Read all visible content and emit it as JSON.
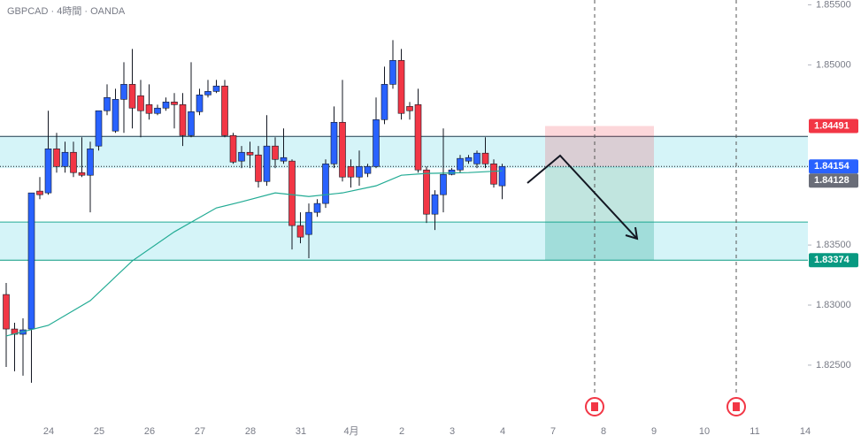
{
  "chart_data": {
    "type": "candlestick",
    "title": "GBPCAD · 4時間 · OANDA",
    "categories": [
      "24",
      "25",
      "26",
      "27",
      "28",
      "31",
      "4月",
      "2",
      "3",
      "4",
      "7",
      "8",
      "9",
      "10",
      "11",
      "14"
    ],
    "up_color": "#2962ff",
    "down_color": "#f23645",
    "open": [
      1.83088,
      1.82801,
      1.82757,
      1.82801,
      1.83949,
      1.83934,
      1.84301,
      1.84154,
      1.84272,
      1.84103,
      1.84081,
      1.84324,
      1.84618,
      1.84449,
      1.84713,
      1.84838,
      1.84743,
      1.84669,
      1.84596,
      1.8464,
      1.84691,
      1.84669,
      1.84412,
      1.8461,
      1.8475,
      1.84779,
      1.84824,
      1.84412,
      1.84199,
      1.84272,
      1.8425,
      1.84029,
      1.84324,
      1.84199,
      1.84199,
      1.83662,
      1.83588,
      1.83772,
      1.83846,
      1.84176,
      1.84522,
      1.84154,
      1.84066,
      1.84096,
      1.84154,
      1.84544,
      1.84838,
      1.85037,
      1.84654,
      1.84669,
      1.84125,
      1.83757,
      1.83919,
      1.84088,
      1.84125,
      1.84199,
      1.84176,
      1.84265,
      1.84176,
      1.83993
    ],
    "high": [
      1.83184,
      1.82853,
      1.8289,
      1.83934,
      1.84066,
      1.84618,
      1.84434,
      1.8436,
      1.8436,
      1.84397,
      1.8436,
      1.84618,
      1.84838,
      1.84801,
      1.85022,
      1.85132,
      1.84875,
      1.84838,
      1.84669,
      1.84728,
      1.84765,
      1.84765,
      1.85022,
      1.84801,
      1.84875,
      1.84875,
      1.84875,
      1.84434,
      1.84324,
      1.8436,
      1.84324,
      1.84581,
      1.84397,
      1.84471,
      1.84213,
      1.83772,
      1.83846,
      1.83882,
      1.84213,
      1.84654,
      1.84875,
      1.84213,
      1.84287,
      1.84176,
      1.84728,
      1.84985,
      1.85206,
      1.85132,
      1.84691,
      1.84801,
      1.84154,
      1.83956,
      1.84471,
      1.8414,
      1.8425,
      1.8425,
      1.84287,
      1.84397,
      1.84213,
      1.84176
    ],
    "low": [
      1.82485,
      1.82449,
      1.82412,
      1.82353,
      1.83882,
      1.83919,
      1.84103,
      1.84103,
      1.84066,
      1.84066,
      1.83772,
      1.84287,
      1.84581,
      1.84434,
      1.84434,
      1.84471,
      1.84397,
      1.84544,
      1.84581,
      1.84618,
      1.84471,
      1.84324,
      1.84397,
      1.84581,
      1.84728,
      1.84765,
      1.84397,
      1.84176,
      1.8414,
      1.8414,
      1.83978,
      1.83993,
      1.8414,
      1.84176,
      1.83463,
      1.83515,
      1.8339,
      1.83735,
      1.83809,
      1.8414,
      1.84029,
      1.83978,
      1.83993,
      1.84066,
      1.8414,
      1.84507,
      1.84801,
      1.84544,
      1.84544,
      1.84103,
      1.83684,
      1.83625,
      1.83772,
      1.84081,
      1.84103,
      1.84176,
      1.8414,
      1.8414,
      1.83978,
      1.83882
    ],
    "close": [
      1.82801,
      1.82757,
      1.82794,
      1.83934,
      1.83919,
      1.84301,
      1.84154,
      1.84272,
      1.84103,
      1.84081,
      1.84301,
      1.84618,
      1.84728,
      1.84713,
      1.84838,
      1.8464,
      1.84618,
      1.84596,
      1.8464,
      1.84691,
      1.84669,
      1.84412,
      1.8461,
      1.8475,
      1.84779,
      1.84824,
      1.84412,
      1.84191,
      1.84272,
      1.8425,
      1.84029,
      1.84324,
      1.84213,
      1.84228,
      1.83662,
      1.83566,
      1.83772,
      1.83846,
      1.84176,
      1.84522,
      1.84066,
      1.84066,
      1.84154,
      1.84154,
      1.84544,
      1.84838,
      1.85037,
      1.84596,
      1.84618,
      1.84125,
      1.83757,
      1.83919,
      1.84088,
      1.84125,
      1.84221,
      1.84228,
      1.84265,
      1.84176,
      1.84007,
      1.84154
    ],
    "ma": {
      "color": "#22ab94",
      "x": [
        0,
        5,
        10,
        15,
        20,
        25,
        28,
        32,
        36,
        40,
        44,
        47,
        50,
        55,
        59
      ],
      "values": [
        1.82743,
        1.82831,
        1.83037,
        1.83368,
        1.8361,
        1.83809,
        1.8386,
        1.83934,
        1.83904,
        1.83934,
        1.83993,
        1.84081,
        1.84096,
        1.84103,
        1.84118
      ]
    },
    "ylim": [
      1.8208,
      1.8554
    ],
    "yticks": [
      {
        "value": 1.855,
        "label": "1.85500"
      },
      {
        "value": 1.85,
        "label": "1.85000"
      },
      {
        "value": 1.835,
        "label": "1.83500"
      },
      {
        "value": 1.83,
        "label": "1.83000"
      },
      {
        "value": 1.825,
        "label": "1.82500"
      }
    ],
    "zones": [
      {
        "from": 1.84404,
        "to": 1.8414
      },
      {
        "from": 1.83691,
        "to": 1.83374
      }
    ],
    "position": {
      "stop": 1.84491,
      "entry": 1.84154,
      "target": 1.83374
    },
    "price_labels": [
      {
        "value": 1.84491,
        "color": "#f23645"
      },
      {
        "value": 1.84154,
        "color": "#2962ff"
      },
      {
        "value": 1.84128,
        "color": "#6a6d78"
      },
      {
        "value": 1.83374,
        "color": "#089981"
      }
    ]
  }
}
